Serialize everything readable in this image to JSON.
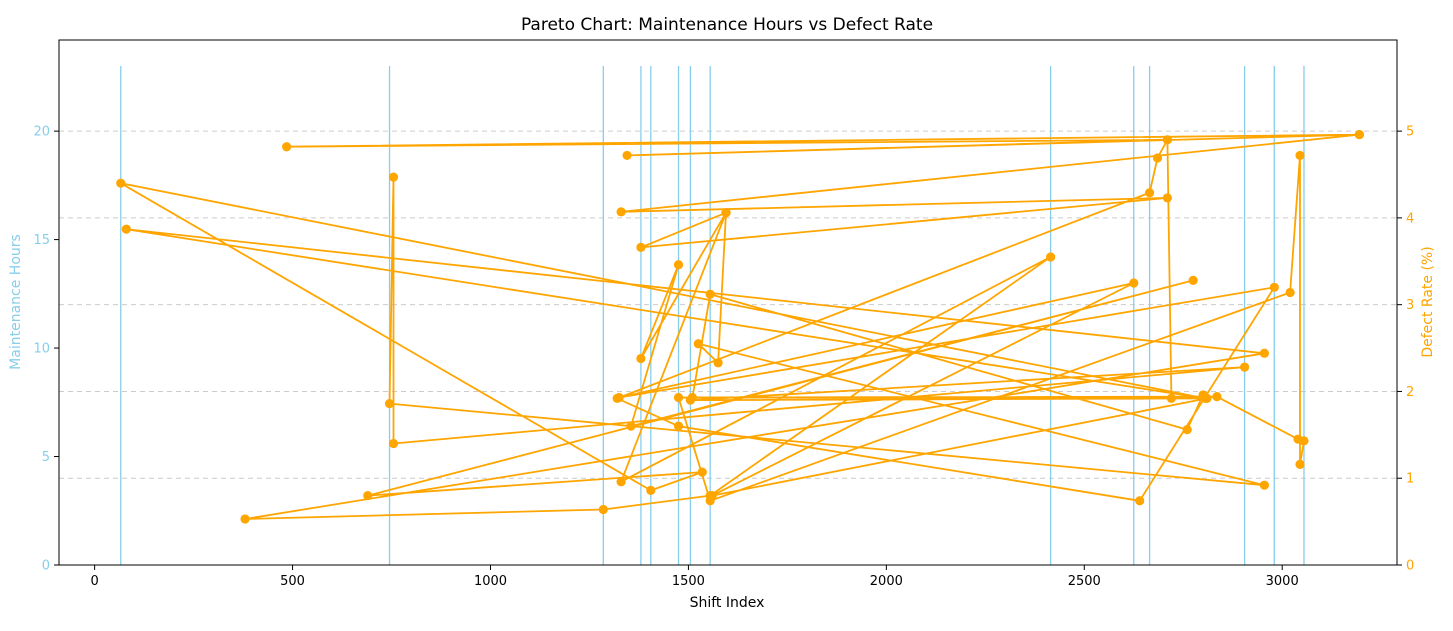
{
  "chart_data": {
    "type": "line",
    "title": "Pareto Chart: Maintenance Hours vs Defect Rate",
    "xlabel": "Shift Index",
    "ylabel_left": "Maintenance Hours",
    "ylabel_right": "Defect Rate (%)",
    "xlim": [
      -90,
      3290
    ],
    "ylim_left": [
      0,
      24.2
    ],
    "ylim_right": [
      0,
      6.05
    ],
    "x_ticks": [
      0,
      500,
      1000,
      1500,
      2000,
      2500,
      3000
    ],
    "y_left_ticks": [
      0,
      5,
      10,
      15,
      20
    ],
    "y_right_ticks": [
      0,
      1,
      2,
      3,
      4,
      5
    ],
    "grid": "horizontal dashed at right-axis ticks",
    "bars_series": {
      "name": "Maintenance Hours",
      "color": "#87ceeb",
      "x": [
        66,
        745,
        1285,
        1380,
        1405,
        1475,
        1505,
        1555,
        2415,
        2625,
        2665,
        2905,
        2980,
        3055
      ],
      "values": [
        23,
        23,
        23,
        23,
        23,
        23,
        23,
        23,
        23,
        23,
        23,
        23,
        23,
        23
      ]
    },
    "line_series": {
      "name": "Defect Rate (%)",
      "color": "#ffa500",
      "points": [
        [
          3195,
          4.96
        ],
        [
          485,
          4.82
        ],
        [
          2710,
          4.9
        ],
        [
          1345,
          4.72
        ],
        [
          3195,
          4.96
        ],
        [
          1330,
          4.07
        ],
        [
          2710,
          4.23
        ],
        [
          1380,
          3.66
        ],
        [
          1595,
          4.06
        ],
        [
          1330,
          0.96
        ],
        [
          2415,
          3.55
        ],
        [
          1555,
          0.8
        ],
        [
          1285,
          0.64
        ],
        [
          380,
          0.53
        ],
        [
          2955,
          2.44
        ],
        [
          80,
          3.87
        ],
        [
          2805,
          1.92
        ],
        [
          66,
          4.4
        ],
        [
          1405,
          0.86
        ],
        [
          1535,
          1.07
        ],
        [
          690,
          0.8
        ],
        [
          2775,
          3.28
        ],
        [
          1355,
          1.6
        ],
        [
          1475,
          3.46
        ],
        [
          1380,
          2.38
        ],
        [
          1595,
          4.06
        ],
        [
          1575,
          2.33
        ],
        [
          1525,
          2.55
        ],
        [
          2955,
          0.92
        ],
        [
          745,
          1.86
        ],
        [
          755,
          4.47
        ],
        [
          755,
          1.4
        ],
        [
          2905,
          2.28
        ],
        [
          1505,
          1.9
        ],
        [
          2810,
          1.92
        ],
        [
          1560,
          0.8
        ],
        [
          2625,
          3.25
        ],
        [
          1325,
          1.93
        ],
        [
          2980,
          3.2
        ],
        [
          2640,
          0.74
        ],
        [
          1475,
          1.6
        ],
        [
          1320,
          1.92
        ],
        [
          2665,
          4.29
        ],
        [
          2685,
          4.69
        ],
        [
          2710,
          4.9
        ],
        [
          2720,
          1.92
        ],
        [
          1475,
          1.93
        ],
        [
          1555,
          0.74
        ],
        [
          3020,
          3.14
        ],
        [
          3045,
          4.72
        ],
        [
          3045,
          1.16
        ],
        [
          3055,
          1.43
        ],
        [
          3040,
          1.45
        ],
        [
          2835,
          1.94
        ],
        [
          1510,
          1.93
        ],
        [
          1555,
          3.12
        ],
        [
          2760,
          1.56
        ],
        [
          2800,
          1.96
        ]
      ]
    }
  }
}
